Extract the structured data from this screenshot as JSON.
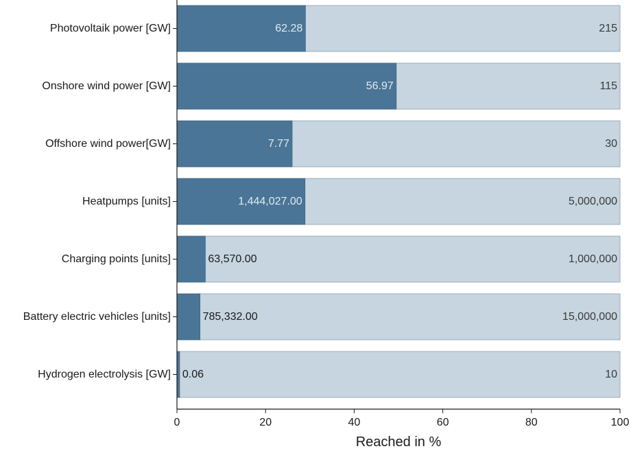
{
  "chart_data": {
    "type": "bar",
    "orientation": "horizontal",
    "stacked_overlay": true,
    "title": "",
    "xlabel": "Reached in %",
    "ylabel": "",
    "xlim": [
      0,
      100
    ],
    "xticks": [
      "0",
      "20",
      "40",
      "60",
      "80",
      "100"
    ],
    "grid": false,
    "categories": [
      "Photovoltaik power [GW]",
      "Onshore wind power [GW]",
      "Offshore wind power[GW]",
      "Heatpumps [units]",
      "Charging points [units]",
      "Battery electric vehicles [units]",
      "Hydrogen electrolysis [GW]"
    ],
    "series": [
      {
        "values": [
          29.0,
          49.5,
          26.0,
          28.9,
          6.4,
          5.2,
          0.6
        ],
        "color": "#4a7596",
        "labels": [
          "62.28",
          "56.97",
          "7.77",
          "1,444,027.00",
          "63,570.00",
          "785,332.00",
          "0.06"
        ]
      },
      {
        "values": [
          100,
          100,
          100,
          100,
          100,
          100,
          100
        ],
        "color": "#c6d5df",
        "labels": [
          "215",
          "115",
          "30",
          "5,000,000",
          "1,000,000",
          "15,000,000",
          "10"
        ]
      }
    ]
  }
}
